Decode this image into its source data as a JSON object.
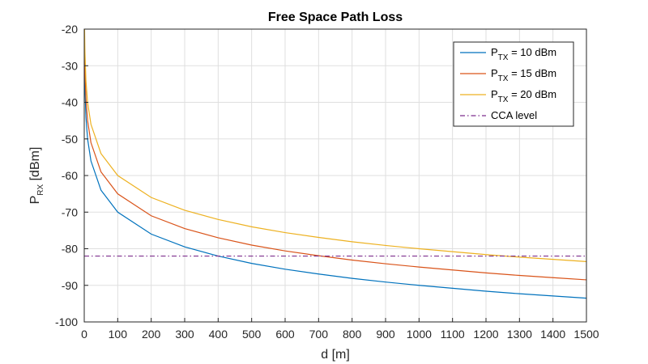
{
  "chart_data": {
    "type": "line",
    "title": "Free Space Path Loss",
    "xlabel": "d [m]",
    "ylabel": {
      "main": "P",
      "sub": "RX",
      "unit": " [dBm]"
    },
    "xlim": [
      0,
      1500
    ],
    "ylim": [
      -100,
      -20
    ],
    "xticks": [
      0,
      100,
      200,
      300,
      400,
      500,
      600,
      700,
      800,
      900,
      1000,
      1100,
      1200,
      1300,
      1400,
      1500
    ],
    "yticks": [
      -100,
      -90,
      -80,
      -70,
      -60,
      -50,
      -40,
      -30,
      -20
    ],
    "grid": true,
    "legend_position": "top-right",
    "x": [
      1,
      2,
      5,
      10,
      20,
      50,
      100,
      200,
      300,
      400,
      500,
      600,
      700,
      800,
      900,
      1000,
      1100,
      1200,
      1300,
      1400,
      1500
    ],
    "series": [
      {
        "name": {
          "main": "P",
          "sub": "TX",
          "rest": " = 10 dBm"
        },
        "color": "#0072BD",
        "values": [
          -30,
          -36,
          -44,
          -50,
          -56,
          -64,
          -70,
          -76,
          -79.5,
          -82,
          -84,
          -85.6,
          -86.9,
          -88.1,
          -89.1,
          -90,
          -90.8,
          -91.6,
          -92.3,
          -92.9,
          -93.5
        ]
      },
      {
        "name": {
          "main": "P",
          "sub": "TX",
          "rest": " = 15 dBm"
        },
        "color": "#D95319",
        "values": [
          -25,
          -31,
          -39,
          -45,
          -51,
          -59,
          -65,
          -71,
          -74.5,
          -77,
          -79,
          -80.6,
          -81.9,
          -83.1,
          -84.1,
          -85,
          -85.8,
          -86.6,
          -87.3,
          -87.9,
          -88.5
        ]
      },
      {
        "name": {
          "main": "P",
          "sub": "TX",
          "rest": " = 20 dBm"
        },
        "color": "#EDB120",
        "values": [
          -20,
          -26,
          -34,
          -40,
          -46,
          -54,
          -60,
          -66,
          -69.5,
          -72,
          -74,
          -75.6,
          -76.9,
          -78.1,
          -79.1,
          -80,
          -80.8,
          -81.6,
          -82.3,
          -82.9,
          -83.5
        ]
      },
      {
        "name": {
          "main": "CCA level",
          "sub": "",
          "rest": ""
        },
        "color": "#7E2F8E",
        "dash": "dashdot",
        "constant": -82
      }
    ]
  }
}
